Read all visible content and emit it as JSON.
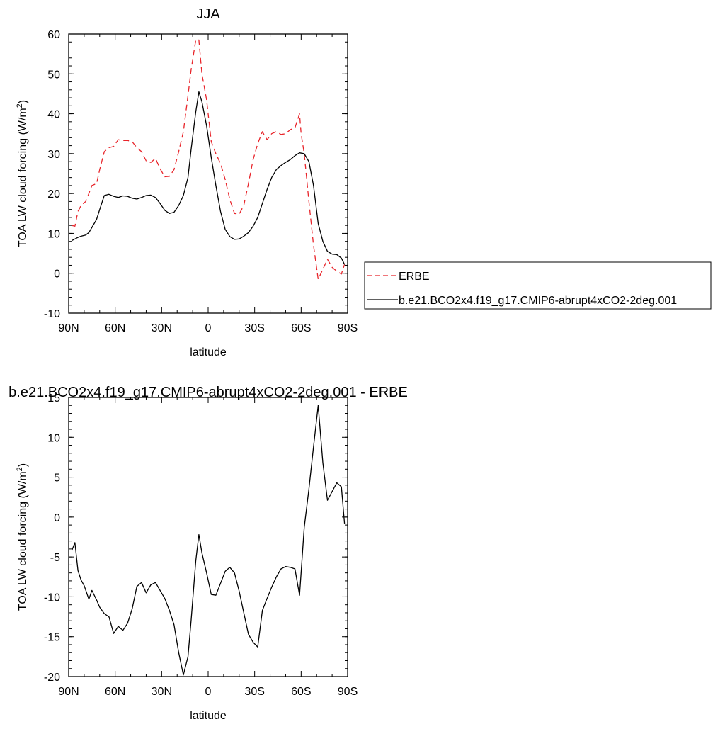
{
  "chart_data": [
    {
      "type": "line",
      "title": "JJA",
      "xlabel": "latitude",
      "ylabel": "TOA LW cloud forcing (W/m",
      "ylabel_sup": "2",
      "ylabel_tail": ")",
      "xlim": [
        90,
        -90
      ],
      "ylim": [
        -10,
        60
      ],
      "x_ticks": [
        90,
        60,
        30,
        0,
        -30,
        -60,
        -90
      ],
      "x_tick_labels": [
        "90N",
        "60N",
        "30N",
        "0",
        "30S",
        "60S",
        "90S"
      ],
      "y_ticks": [
        -10,
        0,
        10,
        20,
        30,
        40,
        50,
        60
      ],
      "y_tick_labels": [
        "-10",
        "0",
        "10",
        "20",
        "30",
        "40",
        "50",
        "60"
      ],
      "grid": false,
      "legend_position": "right-middle",
      "series": [
        {
          "name": "ERBE",
          "color": "#e8242a",
          "dash": "dashed",
          "x": [
            88,
            86,
            84,
            82,
            79,
            77,
            75,
            72,
            70,
            67,
            64,
            61,
            58,
            55,
            52,
            49,
            46,
            43,
            40,
            37,
            34,
            31,
            28,
            25,
            22,
            19,
            16,
            13,
            11,
            8,
            6,
            4,
            1,
            -2,
            -5,
            -8,
            -11,
            -14,
            -17,
            -20,
            -23,
            -26,
            -29,
            -32,
            -35,
            -38,
            -41,
            -44,
            -47,
            -50,
            -53,
            -56,
            -59,
            -60,
            -62,
            -65,
            -68,
            -71,
            -74,
            -77,
            -80,
            -83,
            -86,
            -88
          ],
          "y": [
            12,
            11.8,
            15.5,
            17,
            18,
            20,
            22,
            22.5,
            26,
            30.5,
            31.5,
            31.8,
            33.5,
            33.3,
            33.3,
            33,
            31.5,
            30.5,
            28.2,
            27.8,
            28.8,
            26.2,
            24.2,
            24.3,
            26,
            30.5,
            35.5,
            44.5,
            51,
            58.5,
            58.5,
            50,
            43.5,
            33,
            30,
            27.5,
            23.5,
            18.5,
            15,
            14.8,
            17,
            22.5,
            28.5,
            32.5,
            35.5,
            33.5,
            35,
            35.5,
            34.8,
            35,
            36,
            36.5,
            40,
            35,
            30,
            18,
            7,
            -1.5,
            1,
            3.5,
            1.5,
            0.5,
            -0.2,
            2.2
          ]
        },
        {
          "name": "b.e21.BCO2x4.f19_g17.CMIP6-abrupt4xCO2-2deg.001",
          "color": "#000000",
          "dash": "solid",
          "x": [
            88,
            86,
            84,
            82,
            79,
            77,
            75,
            72,
            70,
            67,
            64,
            61,
            58,
            55,
            52,
            49,
            46,
            43,
            40,
            37,
            34,
            31,
            28,
            25,
            22,
            19,
            16,
            13,
            11,
            8,
            6,
            4,
            1,
            -2,
            -5,
            -8,
            -11,
            -14,
            -17,
            -20,
            -23,
            -26,
            -29,
            -32,
            -35,
            -38,
            -41,
            -44,
            -47,
            -50,
            -53,
            -56,
            -59,
            -62,
            -65,
            -68,
            -71,
            -74,
            -77,
            -80,
            -83,
            -86,
            -88
          ],
          "y": [
            8.2,
            8.6,
            9,
            9.3,
            9.6,
            10.2,
            11.5,
            13.5,
            16,
            19.5,
            19.8,
            19.3,
            19,
            19.4,
            19.3,
            18.8,
            18.6,
            19,
            19.5,
            19.6,
            19,
            17.5,
            15.8,
            15,
            15.3,
            17,
            19.5,
            24,
            31,
            40.5,
            45.5,
            43,
            37,
            29,
            22,
            15.5,
            11,
            9.2,
            8.5,
            8.6,
            9.3,
            10.2,
            11.8,
            14,
            17.5,
            21,
            24,
            26,
            27,
            27.8,
            28.5,
            29.5,
            30.2,
            30,
            28,
            22,
            12.5,
            8,
            5.5,
            4.8,
            4.7,
            3.8,
            2.2
          ]
        }
      ]
    },
    {
      "type": "line",
      "title": "b.e21.BCO2x4.f19_g17.CMIP6-abrupt4xCO2-2deg.001 - ERBE",
      "xlabel": "latitude",
      "ylabel": "TOA LW cloud forcing (W/m",
      "ylabel_sup": "2",
      "ylabel_tail": ")",
      "xlim": [
        90,
        -90
      ],
      "ylim": [
        -20,
        15
      ],
      "x_ticks": [
        90,
        60,
        30,
        0,
        -30,
        -60,
        -90
      ],
      "x_tick_labels": [
        "90N",
        "60N",
        "30N",
        "0",
        "30S",
        "60S",
        "90S"
      ],
      "y_ticks": [
        -20,
        -15,
        -10,
        -5,
        0,
        5,
        10,
        15
      ],
      "y_tick_labels": [
        "-20",
        "-15",
        "-10",
        "-5",
        "0",
        "5",
        "10",
        "15"
      ],
      "grid": false,
      "series": [
        {
          "color": "#000000",
          "dash": "solid",
          "x": [
            88,
            86,
            84,
            82,
            80,
            77,
            75,
            72,
            70,
            67,
            64,
            61,
            58,
            55,
            52,
            49,
            46,
            43,
            40,
            37,
            34,
            31,
            28,
            25,
            22,
            19,
            16,
            13,
            11,
            8,
            6,
            4,
            1,
            -2,
            -5,
            -8,
            -11,
            -14,
            -17,
            -20,
            -23,
            -26,
            -29,
            -32,
            -35,
            -38,
            -41,
            -44,
            -47,
            -50,
            -53,
            -56,
            -59,
            -62,
            -65,
            -68,
            -71,
            -74,
            -77,
            -80,
            -83,
            -86,
            -88
          ],
          "y": [
            -4.2,
            -3.2,
            -6.7,
            -7.9,
            -8.6,
            -10.3,
            -9.2,
            -10.4,
            -11.3,
            -12.1,
            -12.5,
            -14.6,
            -13.7,
            -14.2,
            -13.3,
            -11.5,
            -8.7,
            -8.2,
            -9.5,
            -8.5,
            -8.2,
            -9.2,
            -10.2,
            -11.7,
            -13.5,
            -17,
            -19.8,
            -17.5,
            -13,
            -5.5,
            -2.2,
            -4.5,
            -7,
            -9.7,
            -9.8,
            -8.3,
            -6.8,
            -6.3,
            -7,
            -9.3,
            -12,
            -14.7,
            -15.7,
            -16.3,
            -11.7,
            -10.2,
            -8.8,
            -7.5,
            -6.5,
            -6.2,
            -6.3,
            -6.5,
            -9.8,
            -1.3,
            3.5,
            8.8,
            14,
            6.8,
            2.1,
            3.2,
            4.3,
            3.8,
            -0.8
          ]
        }
      ]
    }
  ]
}
